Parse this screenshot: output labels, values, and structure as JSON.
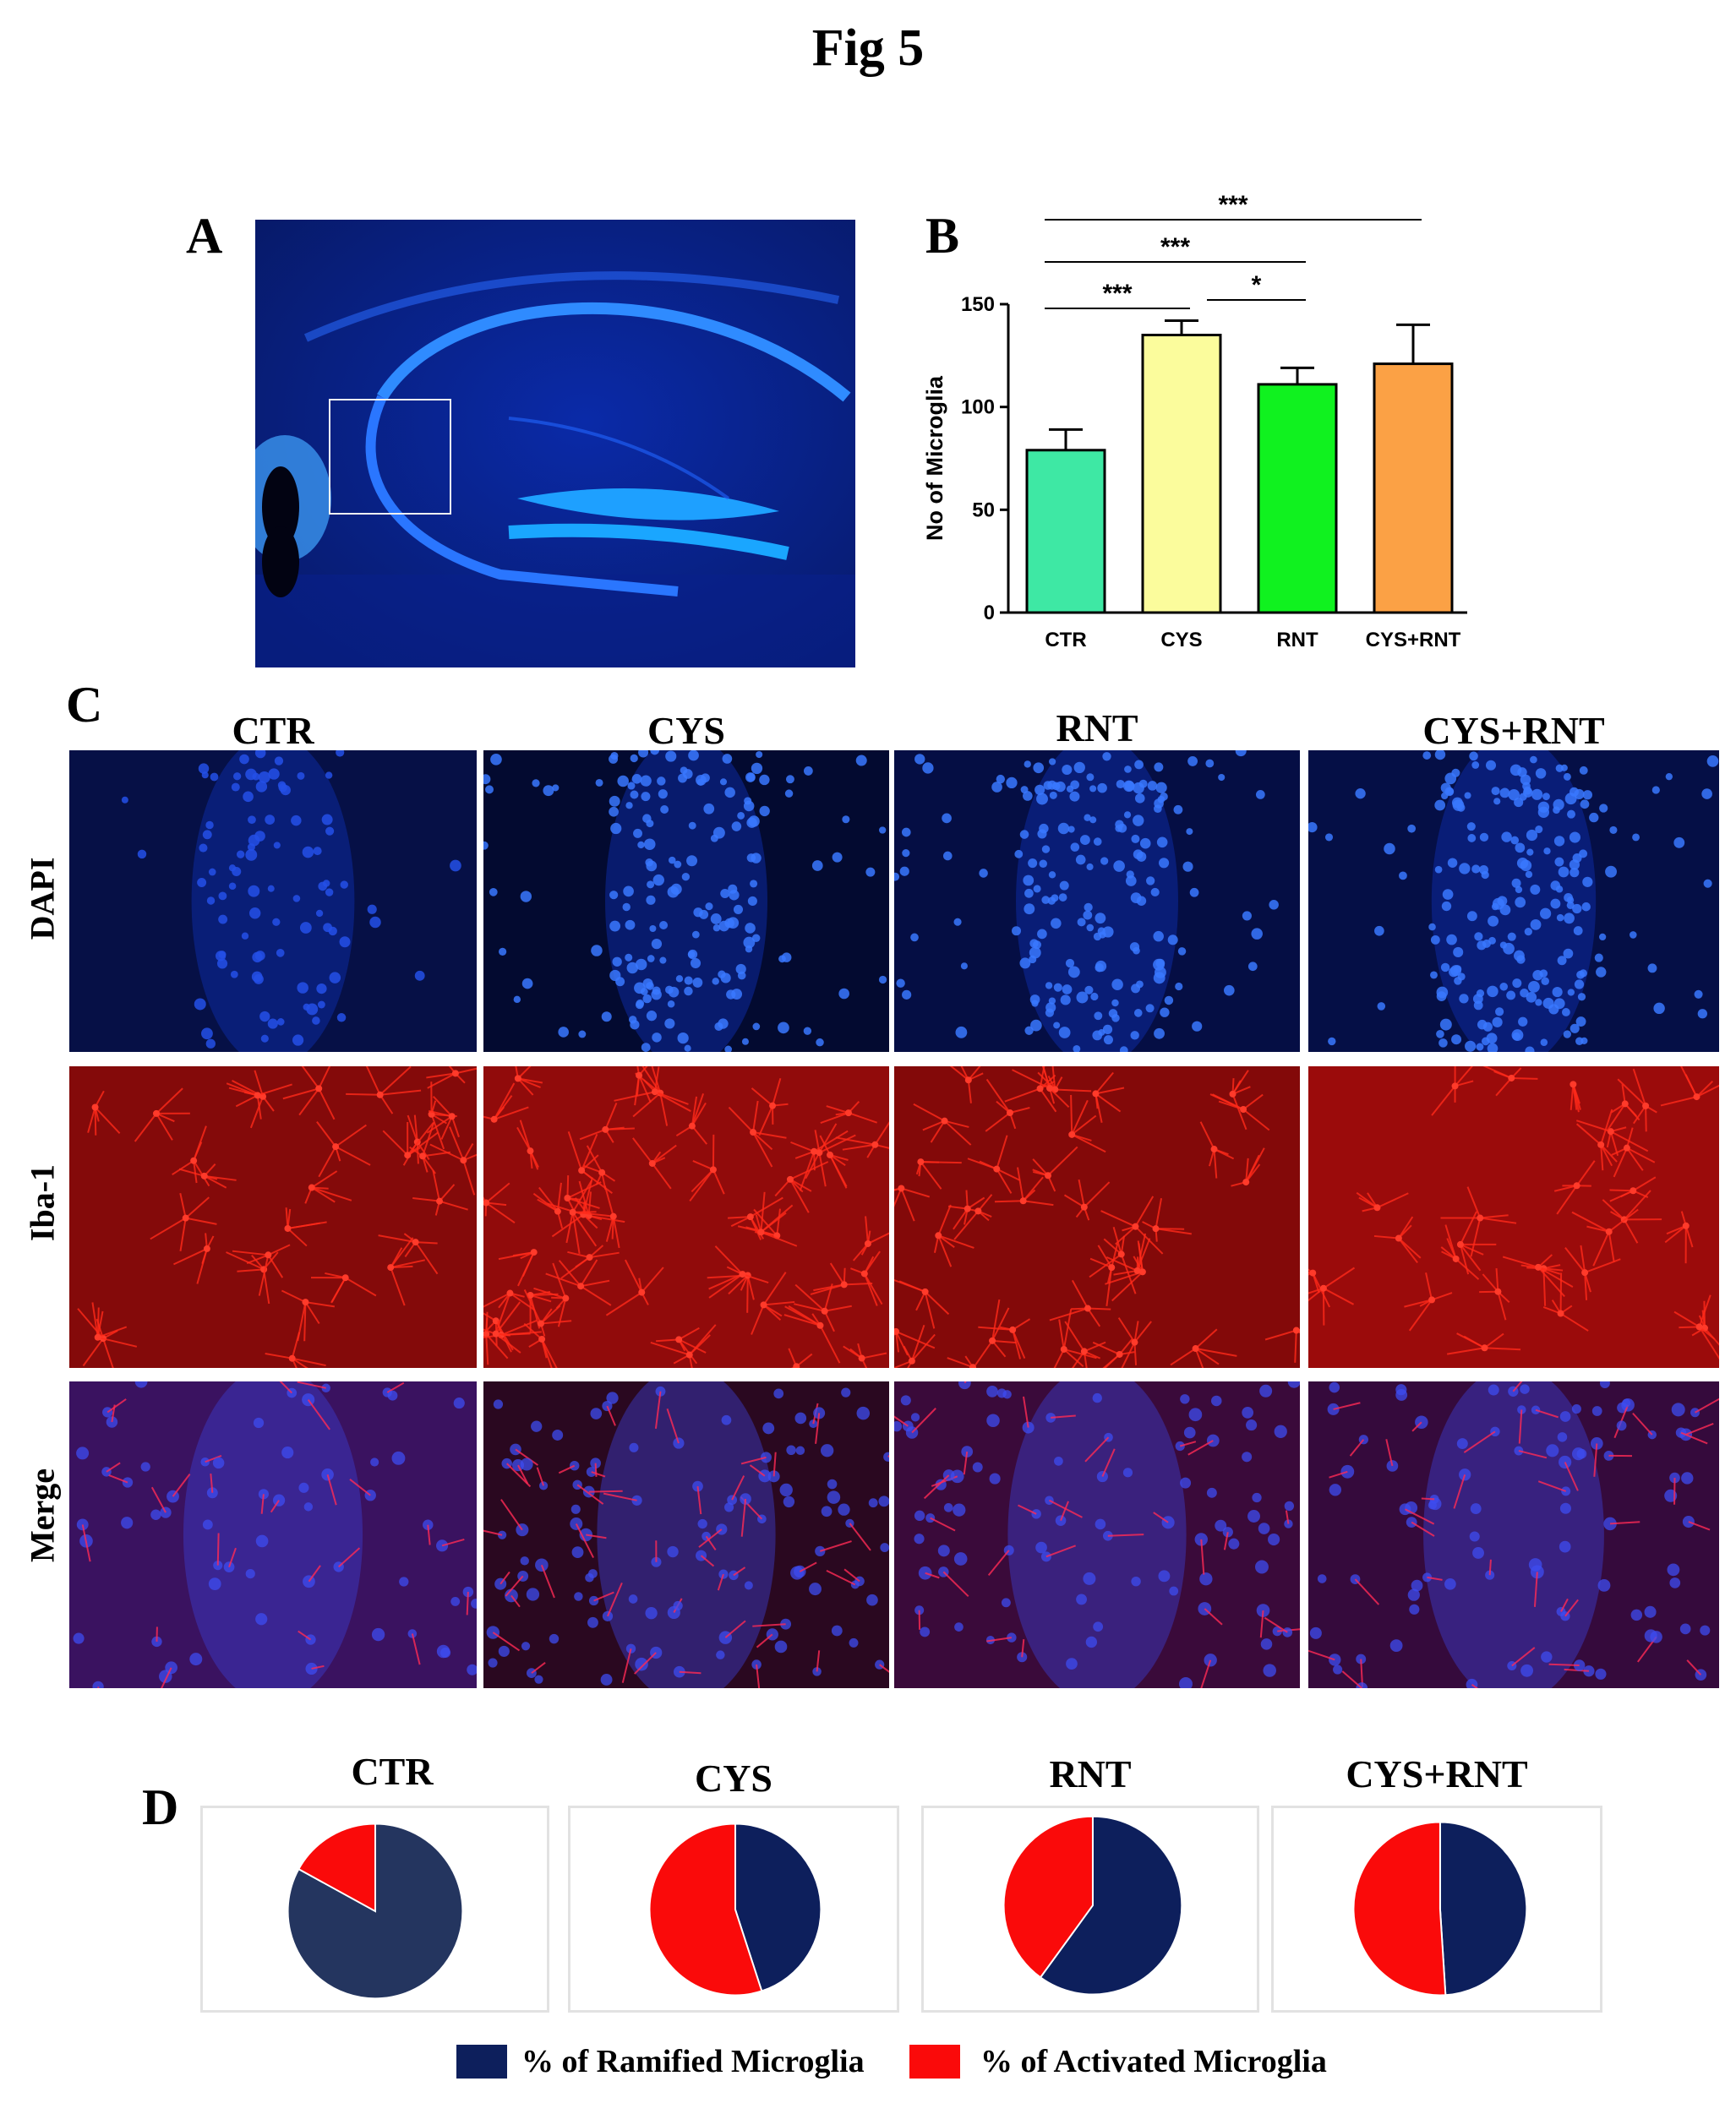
{
  "figure": {
    "title": "Fig 5"
  },
  "panels": {
    "A": {
      "letter": "A"
    },
    "B": {
      "letter": "B",
      "chart_data": {
        "type": "bar",
        "categories": [
          "CTR",
          "CYS",
          "RNT",
          "CYS+RNT"
        ],
        "values": [
          79,
          135,
          111,
          121
        ],
        "errors": [
          10,
          7,
          8,
          19
        ],
        "colors": [
          "#3ee8a4",
          "#fbfc9c",
          "#10f21f",
          "#fba145"
        ],
        "ylabel": "No of Microglia",
        "ylim": [
          0,
          150
        ],
        "yticks": [
          0,
          50,
          100,
          150
        ],
        "significance": [
          {
            "from": 0,
            "to": 1,
            "label": "***"
          },
          {
            "from": 1,
            "to": 2,
            "label": "*"
          },
          {
            "from": 0,
            "to": 2,
            "label": "***"
          },
          {
            "from": 0,
            "to": 3,
            "label": "***"
          }
        ]
      }
    },
    "C": {
      "letter": "C",
      "columns": [
        "CTR",
        "CYS",
        "RNT",
        "CYS+RNT"
      ],
      "rows": [
        "DAPI",
        "Iba-1",
        "Merge"
      ]
    },
    "D": {
      "letter": "D",
      "chart_data": [
        {
          "type": "pie",
          "title": "CTR",
          "ramified": 83,
          "activated": 17
        },
        {
          "type": "pie",
          "title": "CYS",
          "ramified": 45,
          "activated": 55
        },
        {
          "type": "pie",
          "title": "RNT",
          "ramified": 60,
          "activated": 40
        },
        {
          "type": "pie",
          "title": "CYS+RNT",
          "ramified": 49,
          "activated": 51
        }
      ],
      "legend": {
        "ramified": {
          "label": "% of Ramified Microglia",
          "color": "#0d1f5c"
        },
        "activated": {
          "label": "% of  Activated Microglia",
          "color": "#fa0a0a"
        }
      }
    }
  }
}
